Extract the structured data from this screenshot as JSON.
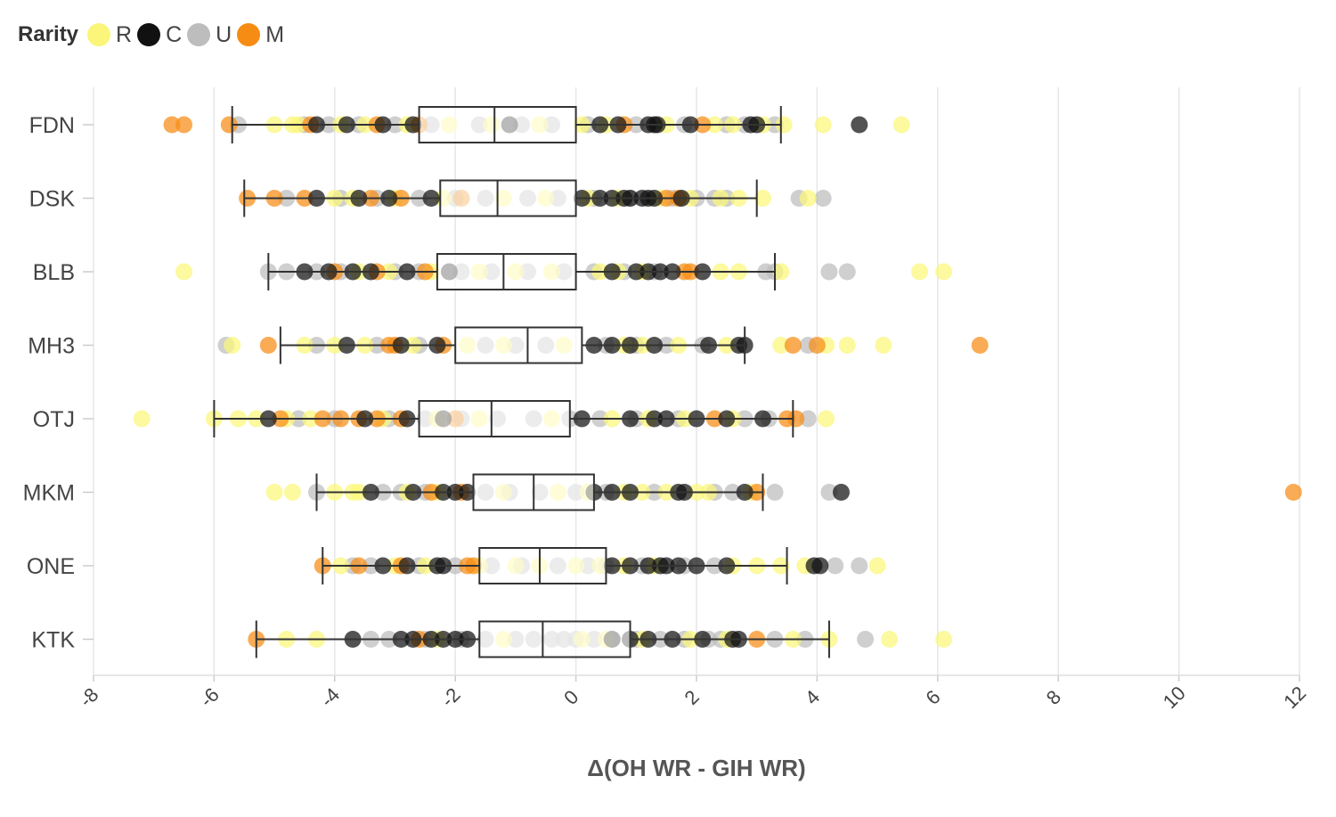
{
  "legend": {
    "title": "Rarity",
    "items": [
      {
        "label": "R",
        "color": "#fbf67a"
      },
      {
        "label": "C",
        "color": "#111111"
      },
      {
        "label": "U",
        "color": "#bdbdbd"
      },
      {
        "label": "M",
        "color": "#f78c14"
      }
    ]
  },
  "chart_data": {
    "type": "boxplot",
    "title": "",
    "xlabel": "Δ(OH WR - GIH WR)",
    "ylabel": "",
    "xlim": [
      -8,
      12
    ],
    "xticks": [
      -8,
      -6,
      -4,
      -2,
      0,
      2,
      4,
      6,
      8,
      10,
      12
    ],
    "grid": true,
    "legend_placement": "top-left",
    "categories": [
      "FDN",
      "DSK",
      "BLB",
      "MH3",
      "OTJ",
      "MKM",
      "ONE",
      "KTK"
    ],
    "boxes": [
      {
        "set": "FDN",
        "whisker_low": -5.7,
        "q1": -2.6,
        "median": -1.35,
        "q3": 0.0,
        "whisker_high": 3.4
      },
      {
        "set": "DSK",
        "whisker_low": -5.5,
        "q1": -2.25,
        "median": -1.3,
        "q3": 0.0,
        "whisker_high": 3.0
      },
      {
        "set": "BLB",
        "whisker_low": -5.1,
        "q1": -2.3,
        "median": -1.2,
        "q3": 0.0,
        "whisker_high": 3.3
      },
      {
        "set": "MH3",
        "whisker_low": -4.9,
        "q1": -2.0,
        "median": -0.8,
        "q3": 0.1,
        "whisker_high": 2.8
      },
      {
        "set": "OTJ",
        "whisker_low": -6.0,
        "q1": -2.6,
        "median": -1.4,
        "q3": -0.1,
        "whisker_high": 3.6
      },
      {
        "set": "MKM",
        "whisker_low": -4.3,
        "q1": -1.7,
        "median": -0.7,
        "q3": 0.3,
        "whisker_high": 3.1
      },
      {
        "set": "ONE",
        "whisker_low": -4.2,
        "q1": -1.6,
        "median": -0.6,
        "q3": 0.5,
        "whisker_high": 3.5
      },
      {
        "set": "KTK",
        "whisker_low": -5.3,
        "q1": -1.6,
        "median": -0.55,
        "q3": 0.9,
        "whisker_high": 4.2
      }
    ],
    "points": {
      "FDN": {
        "M": [
          -6.7,
          -6.5,
          -5.75,
          -4.4,
          -3.3,
          -2.6,
          0.8,
          2.1
        ],
        "C": [
          -4.3,
          -3.8,
          -3.2,
          -2.7,
          -1.1,
          0.4,
          0.7,
          1.2,
          1.3,
          1.35,
          1.9,
          2.9,
          3.0,
          4.7
        ],
        "U": [
          -5.6,
          -4.5,
          -4.1,
          -3.6,
          -3.0,
          -2.4,
          -1.6,
          -0.9,
          -0.4,
          0.2,
          1.0,
          1.8,
          2.5,
          2.8,
          3.3
        ],
        "R": [
          -5.0,
          -4.7,
          -4.6,
          -3.9,
          -3.5,
          -2.8,
          -2.1,
          -1.4,
          -0.6,
          0.1,
          0.5,
          1.5,
          2.3,
          2.6,
          3.1,
          3.45,
          4.1,
          5.4
        ]
      },
      "DSK": {
        "M": [
          -5.45,
          -5.0,
          -4.5,
          -3.4,
          -2.9,
          -1.9,
          1.5,
          1.7
        ],
        "C": [
          -4.3,
          -3.6,
          -3.1,
          -2.4,
          0.1,
          0.4,
          0.6,
          0.8,
          0.9,
          1.1,
          1.2,
          1.3,
          1.75
        ],
        "U": [
          -4.8,
          -3.9,
          -3.3,
          -2.6,
          -2.0,
          -1.5,
          -0.8,
          -0.3,
          0.3,
          0.9,
          1.6,
          2.0,
          2.3,
          2.5,
          3.7,
          4.1
        ],
        "R": [
          -4.0,
          -3.7,
          -3.0,
          -2.2,
          -1.2,
          -0.5,
          0.2,
          0.7,
          1.4,
          1.9,
          2.4,
          2.7,
          3.1,
          3.85
        ]
      },
      "BLB": {
        "M": [
          -4.0,
          -3.3,
          -2.5,
          1.8,
          1.9
        ],
        "C": [
          -4.5,
          -4.1,
          -3.7,
          -3.4,
          -2.8,
          -2.1,
          0.6,
          1.0,
          1.2,
          1.4,
          1.6,
          2.1
        ],
        "U": [
          -5.1,
          -4.8,
          -4.3,
          -3.9,
          -3.0,
          -2.6,
          -1.9,
          -1.4,
          -0.8,
          -0.2,
          0.3,
          0.8,
          1.3,
          3.15,
          3.3,
          4.2,
          4.5
        ],
        "R": [
          -6.5,
          -3.6,
          -3.1,
          -2.4,
          -1.6,
          -1.0,
          -0.4,
          0.4,
          0.7,
          1.1,
          2.4,
          2.7,
          3.4,
          5.7,
          6.1
        ]
      },
      "MH3": {
        "M": [
          -5.1,
          -3.1,
          -3.0,
          -2.2,
          3.6,
          4.0,
          6.7
        ],
        "C": [
          -3.8,
          -2.9,
          -2.3,
          0.3,
          0.6,
          0.9,
          1.3,
          2.2,
          2.7,
          2.8
        ],
        "U": [
          -5.8,
          -4.3,
          -3.3,
          -2.6,
          -1.5,
          -1.0,
          -0.5,
          0.5,
          1.0,
          1.5,
          2.1,
          3.85
        ],
        "R": [
          -5.7,
          -4.5,
          -4.0,
          -3.5,
          -2.7,
          -1.8,
          -1.2,
          -0.2,
          0.8,
          1.1,
          1.7,
          2.5,
          3.4,
          4.15,
          4.5,
          5.1
        ]
      },
      "OTJ": {
        "M": [
          -4.9,
          -4.2,
          -3.9,
          -3.6,
          -3.3,
          -2.9,
          -2.0,
          2.3,
          3.5,
          3.65
        ],
        "C": [
          -5.1,
          -3.5,
          -2.8,
          -2.2,
          0.1,
          0.9,
          1.3,
          1.5,
          2.0,
          2.5,
          3.1
        ],
        "U": [
          -4.6,
          -4.0,
          -3.1,
          -2.5,
          -1.9,
          -1.3,
          -0.7,
          -0.1,
          0.4,
          1.0,
          1.7,
          2.8,
          3.2,
          3.85
        ],
        "R": [
          -7.2,
          -6.0,
          -5.6,
          -5.3,
          -4.8,
          -4.4,
          -3.2,
          -2.3,
          -1.6,
          -0.4,
          0.6,
          1.2,
          1.8,
          2.6,
          4.15
        ]
      },
      "MKM": {
        "M": [
          -2.4,
          -1.9,
          3.0,
          11.9
        ],
        "C": [
          -3.4,
          -2.7,
          -2.2,
          -2.0,
          -1.8,
          0.3,
          0.6,
          0.9,
          1.7,
          1.8,
          2.8,
          4.4
        ],
        "U": [
          -4.3,
          -3.2,
          -2.9,
          -2.5,
          -1.5,
          -1.1,
          -0.6,
          0.0,
          0.5,
          1.3,
          2.3,
          2.6,
          3.3,
          4.2
        ],
        "R": [
          -5.0,
          -4.7,
          -4.0,
          -3.7,
          -3.6,
          -2.8,
          -2.3,
          -1.2,
          -0.3,
          0.2,
          0.8,
          1.1,
          1.5,
          2.0,
          2.2,
          2.9
        ]
      },
      "ONE": {
        "M": [
          -4.2,
          -3.6,
          -2.9,
          -1.8,
          -1.7
        ],
        "C": [
          -3.2,
          -2.8,
          -2.3,
          -2.2,
          0.6,
          0.9,
          1.2,
          1.4,
          1.5,
          1.7,
          2.0,
          2.5,
          3.95,
          4.05
        ],
        "U": [
          -3.7,
          -3.4,
          -2.6,
          -2.0,
          -1.4,
          -0.9,
          -0.3,
          0.2,
          0.5,
          1.1,
          1.8,
          2.3,
          4.3,
          4.7
        ],
        "R": [
          -3.9,
          -3.0,
          -2.5,
          -1.6,
          -1.0,
          -0.6,
          0.0,
          0.4,
          0.8,
          1.3,
          2.6,
          3.0,
          3.4,
          3.8,
          5.0
        ]
      },
      "KTK": {
        "M": [
          -5.3,
          -2.6,
          3.0
        ],
        "C": [
          -3.7,
          -2.9,
          -2.7,
          -2.4,
          -2.2,
          -2.0,
          -1.8,
          0.6,
          0.9,
          1.2,
          1.6,
          2.1,
          2.6,
          2.7
        ],
        "U": [
          -3.4,
          -3.1,
          -2.5,
          -1.9,
          -1.5,
          -1.0,
          -0.7,
          -0.4,
          -0.2,
          0.0,
          0.3,
          0.6,
          1.0,
          1.4,
          1.8,
          2.2,
          2.4,
          3.3,
          3.8,
          4.8
        ],
        "R": [
          -4.8,
          -4.3,
          -2.3,
          -1.2,
          0.1,
          0.5,
          1.1,
          1.9,
          2.5,
          3.6,
          4.2,
          5.2,
          6.1
        ]
      }
    }
  }
}
